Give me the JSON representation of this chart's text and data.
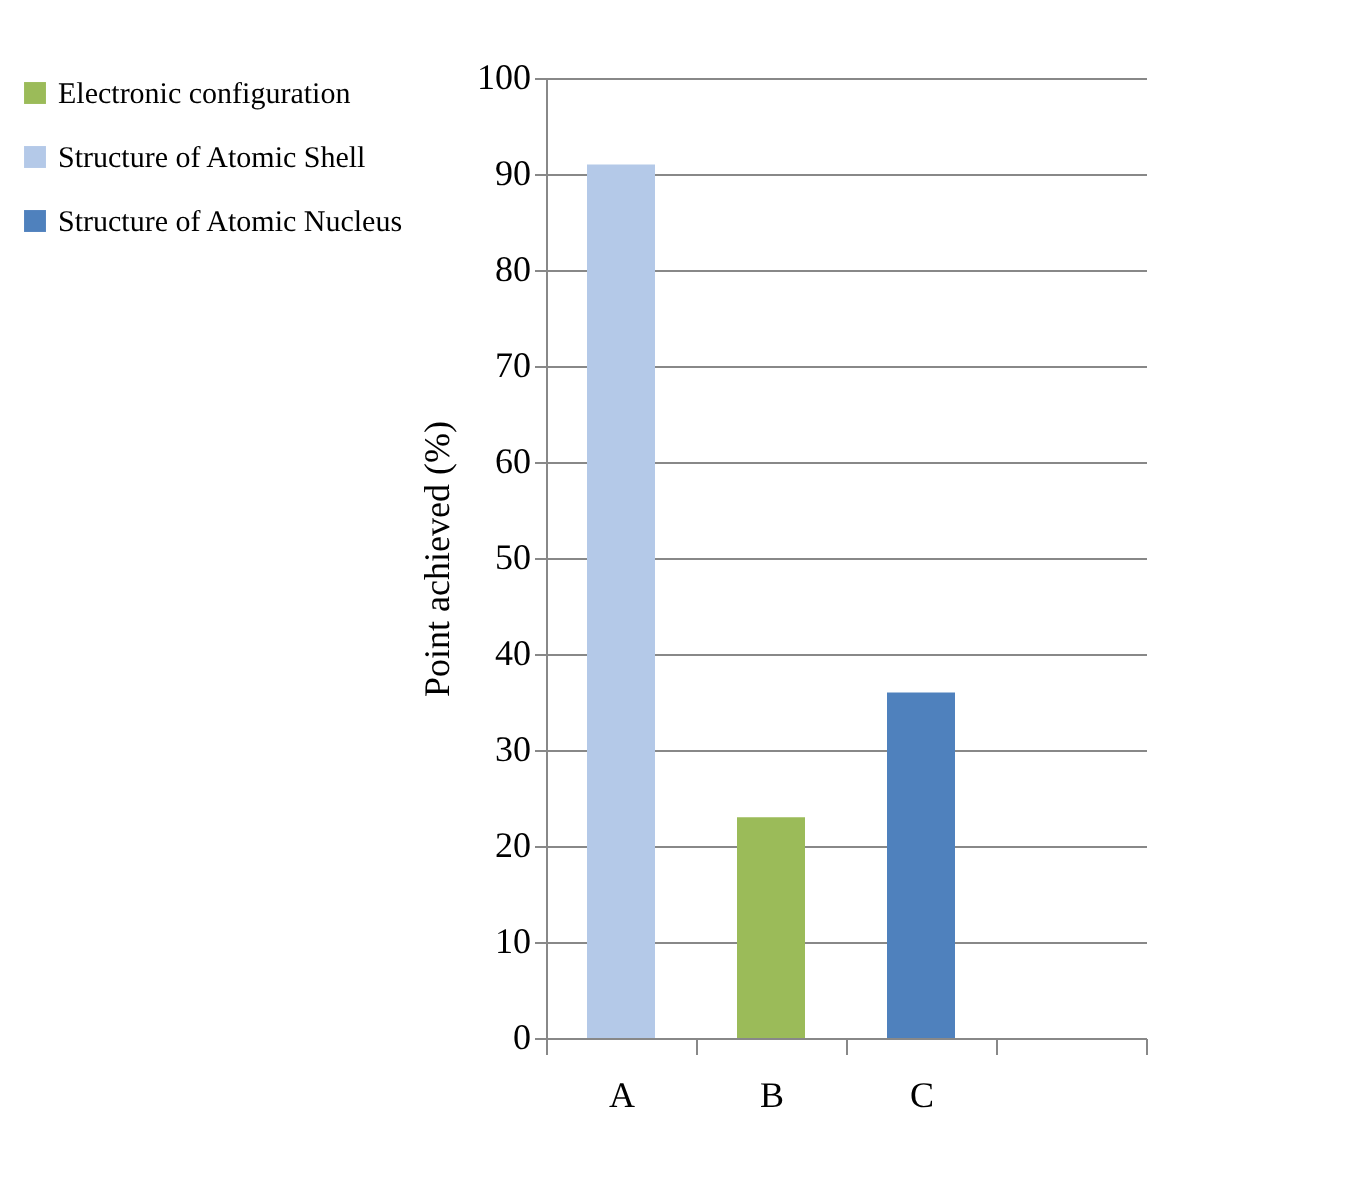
{
  "chart_data": {
    "type": "bar",
    "ylabel": "Point achieved (%)",
    "categories": [
      "A",
      "B",
      "C",
      null
    ],
    "series": [
      {
        "name": "Electronic configuration",
        "color": "#9bbb59",
        "values": [
          null,
          23,
          null,
          null
        ]
      },
      {
        "name": "Structure of Atomic Shell",
        "color": "#b4c9e8",
        "values": [
          91,
          null,
          null,
          null
        ]
      },
      {
        "name": "Structure of Atomic Nucleus",
        "color": "#4f81bd",
        "values": [
          null,
          null,
          36,
          null
        ]
      }
    ],
    "ylim": [
      0,
      100
    ],
    "yticks": [
      0,
      10,
      20,
      30,
      40,
      50,
      60,
      70,
      80,
      90,
      100
    ],
    "grid": "y",
    "legend": "left"
  }
}
